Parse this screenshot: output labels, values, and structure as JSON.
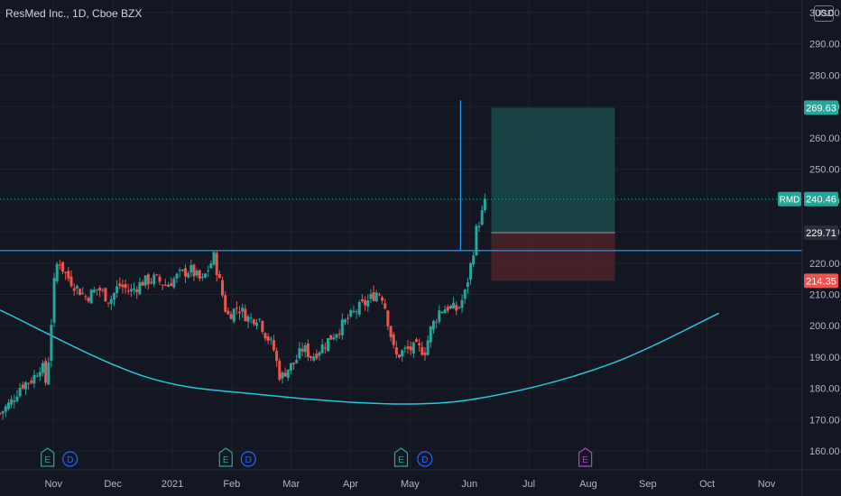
{
  "header": {
    "title": "ResMed Inc., 1D, Cboe BZX",
    "currency": "USD"
  },
  "colors": {
    "background": "#131722",
    "grid": "#1e222d",
    "up": "#26a69a",
    "down": "#ef5350",
    "line": "#2196f3",
    "curve": "#26c6da",
    "profit_zone": "#1b4a4a",
    "loss_zone": "#4a2229",
    "earnings_badge": "#26a69a",
    "dividend_badge": "#2962ff",
    "future_earnings_badge": "#ab47bc"
  },
  "chart_data": {
    "type": "candlestick",
    "symbol": "RMD",
    "interval": "1D",
    "y_axis": {
      "ticks": [
        160,
        170,
        180,
        190,
        200,
        210,
        220,
        230,
        240,
        250,
        260,
        270,
        280,
        290,
        300
      ],
      "tick_labels": [
        "160.00",
        "170.00",
        "180.00",
        "190.00",
        "200.00",
        "210.00",
        "220.00",
        "230.00",
        "240.00",
        "250.00",
        "260.00",
        "270.00",
        "280.00",
        "290.00",
        "300.00"
      ],
      "range": [
        154,
        304
      ]
    },
    "x_axis": {
      "labels": [
        "Nov",
        "Dec",
        "2021",
        "Feb",
        "Mar",
        "Apr",
        "May",
        "Jun",
        "Jul",
        "Aug",
        "Sep",
        "Oct",
        "Nov"
      ],
      "label_month_index": [
        0,
        1,
        2,
        3,
        4,
        5,
        6,
        7,
        8,
        9,
        10,
        11,
        12
      ],
      "range_months": [
        -0.9,
        12.6
      ]
    },
    "price_path": [
      [
        -0.9,
        172
      ],
      [
        -0.7,
        176
      ],
      [
        -0.55,
        181
      ],
      [
        -0.35,
        183
      ],
      [
        -0.2,
        188
      ],
      [
        -0.12,
        181
      ],
      [
        -0.05,
        197
      ],
      [
        0.0,
        212
      ],
      [
        0.08,
        222
      ],
      [
        0.18,
        217
      ],
      [
        0.35,
        213
      ],
      [
        0.55,
        209
      ],
      [
        0.75,
        212
      ],
      [
        0.95,
        208
      ],
      [
        1.1,
        213
      ],
      [
        1.3,
        211
      ],
      [
        1.5,
        214
      ],
      [
        1.7,
        215
      ],
      [
        1.9,
        213
      ],
      [
        2.1,
        216
      ],
      [
        2.3,
        218
      ],
      [
        2.5,
        214
      ],
      [
        2.7,
        222
      ],
      [
        2.82,
        212
      ],
      [
        2.92,
        203
      ],
      [
        3.1,
        206
      ],
      [
        3.3,
        202
      ],
      [
        3.45,
        203
      ],
      [
        3.55,
        198
      ],
      [
        3.7,
        193
      ],
      [
        3.82,
        183
      ],
      [
        3.92,
        186
      ],
      [
        4.05,
        188
      ],
      [
        4.2,
        193
      ],
      [
        4.35,
        190
      ],
      [
        4.5,
        193
      ],
      [
        4.7,
        197
      ],
      [
        4.9,
        201
      ],
      [
        5.1,
        205
      ],
      [
        5.3,
        208
      ],
      [
        5.45,
        211
      ],
      [
        5.55,
        209
      ],
      [
        5.75,
        190
      ],
      [
        5.9,
        192
      ],
      [
        6.1,
        193
      ],
      [
        6.25,
        192
      ],
      [
        6.35,
        199
      ],
      [
        6.5,
        205
      ],
      [
        6.65,
        206
      ],
      [
        6.8,
        205
      ],
      [
        6.92,
        210
      ],
      [
        7.05,
        222
      ],
      [
        7.12,
        231
      ],
      [
        7.2,
        235
      ],
      [
        7.28,
        240.46
      ]
    ],
    "horizontal_line": 224,
    "vertical_line": {
      "month": 6.85,
      "from": 224,
      "to": 272
    },
    "current_price": 240.46,
    "price_labels": [
      {
        "label": "269.63",
        "value": 269.63,
        "kind": "target"
      },
      {
        "label": "RMD",
        "value": 240.46,
        "kind": "symbol"
      },
      {
        "label": "240.46",
        "value": 240.46,
        "kind": "current"
      },
      {
        "label": "229.71",
        "value": 229.71,
        "kind": "entry"
      },
      {
        "label": "214.35",
        "value": 214.35,
        "kind": "stop"
      }
    ],
    "position": {
      "start_month": 7.37,
      "end_month": 9.45,
      "target": 269.63,
      "entry": 229.71,
      "stop": 214.35
    },
    "cup_curve": [
      [
        -0.9,
        205
      ],
      [
        1.5,
        184
      ],
      [
        3.5,
        178
      ],
      [
        5.9,
        175
      ],
      [
        7.5,
        178
      ],
      [
        9.4,
        188
      ],
      [
        11.2,
        204
      ]
    ],
    "events": [
      {
        "type": "E",
        "month": -0.1,
        "kind": "earnings"
      },
      {
        "type": "D",
        "month": 0.28,
        "kind": "dividend"
      },
      {
        "type": "E",
        "month": 2.9,
        "kind": "earnings"
      },
      {
        "type": "D",
        "month": 3.28,
        "kind": "dividend"
      },
      {
        "type": "E",
        "month": 5.85,
        "kind": "earnings"
      },
      {
        "type": "D",
        "month": 6.25,
        "kind": "dividend"
      },
      {
        "type": "E",
        "month": 8.95,
        "kind": "future_earnings"
      }
    ]
  }
}
